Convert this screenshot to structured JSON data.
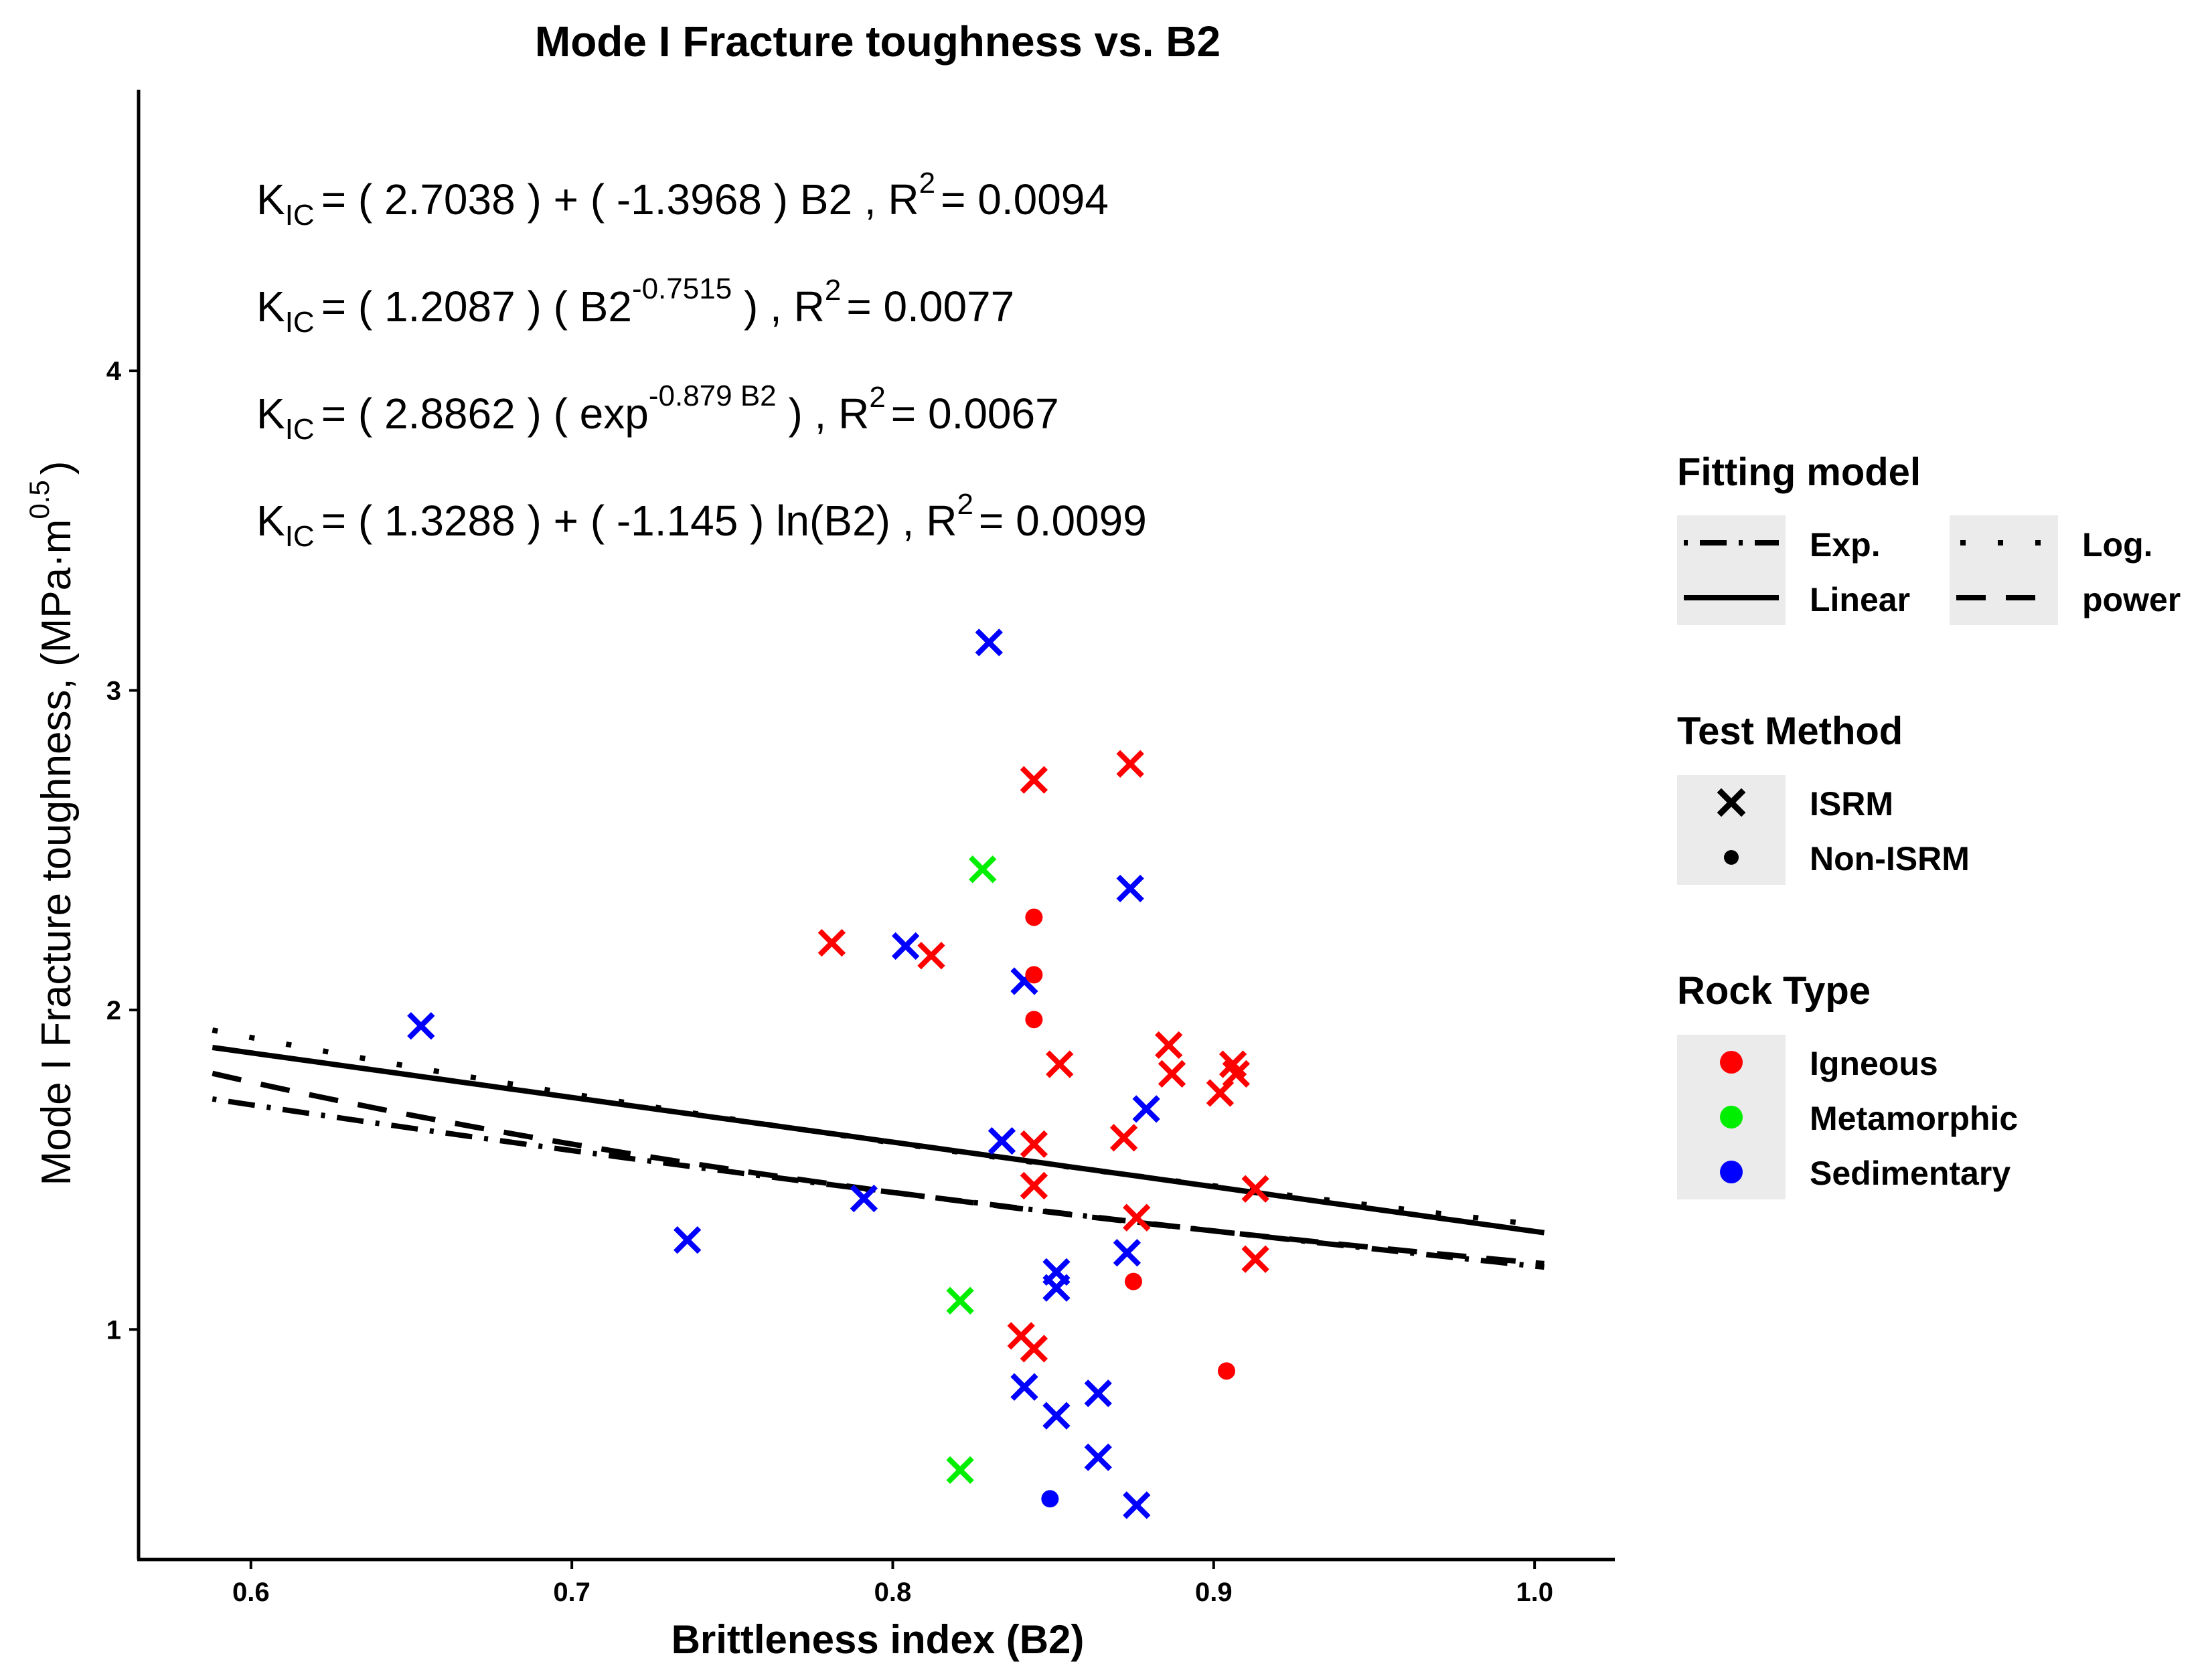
{
  "chart_data": {
    "type": "scatter",
    "title": "Mode I Fracture toughness vs. B2",
    "xlabel": "Brittleness index (B2)",
    "ylabel": "Mode I Fracture toughness, (MPa·m",
    "ylabel_sup": "0.5",
    "ylabel_close": ")",
    "xlim": [
      0.565,
      1.025
    ],
    "ylim": [
      0.28,
      4.88
    ],
    "xticks": [
      "0.6",
      "0.7",
      "0.8",
      "0.9",
      "1.0"
    ],
    "yticks": [
      "1",
      "2",
      "3",
      "4"
    ],
    "equations": [
      {
        "k": "K",
        "sub": "IC",
        "text": "=  ( 2.7038 ) + ( -1.3968 ) B2 ,  R",
        "r2sup": "2",
        "r2": "= 0.0094"
      },
      {
        "k": "K",
        "sub": "IC",
        "pre": "=  ( 1.2087 ) ( B2",
        "sup": "-0.7515",
        "post": " ) ,  R",
        "r2sup": "2",
        "r2": "= 0.0077"
      },
      {
        "k": "K",
        "sub": "IC",
        "pre": "=  ( 2.8862 ) ( exp",
        "sup": "-0.879 B2",
        "post": " ) ,  R",
        "r2sup": "2",
        "r2": "= 0.0067"
      },
      {
        "k": "K",
        "sub": "IC",
        "text": "=  ( 1.3288 ) + ( -1.145 ) ln(B2) ,  R",
        "r2sup": "2",
        "r2": "= 0.0099"
      }
    ],
    "models": {
      "x_range": [
        0.588,
        1.003
      ],
      "linear": {
        "a": 2.7038,
        "b": -1.3968
      },
      "power": {
        "a": 1.2087,
        "b": -0.7515
      },
      "exp": {
        "a": 2.8862,
        "b": -0.879
      },
      "log": {
        "a": 1.3288,
        "b": -1.145
      }
    },
    "points": [
      {
        "x": 0.653,
        "y": 1.95,
        "method": "ISRM",
        "rock": "Sedimentary"
      },
      {
        "x": 0.736,
        "y": 1.28,
        "method": "ISRM",
        "rock": "Sedimentary"
      },
      {
        "x": 0.781,
        "y": 2.21,
        "method": "ISRM",
        "rock": "Igneous"
      },
      {
        "x": 0.791,
        "y": 1.41,
        "method": "ISRM",
        "rock": "Sedimentary"
      },
      {
        "x": 0.804,
        "y": 2.2,
        "method": "ISRM",
        "rock": "Sedimentary"
      },
      {
        "x": 0.812,
        "y": 2.17,
        "method": "ISRM",
        "rock": "Igneous"
      },
      {
        "x": 0.821,
        "y": 1.09,
        "method": "ISRM",
        "rock": "Metamorphic"
      },
      {
        "x": 0.821,
        "y": 0.56,
        "method": "ISRM",
        "rock": "Metamorphic"
      },
      {
        "x": 0.828,
        "y": 2.44,
        "method": "ISRM",
        "rock": "Metamorphic"
      },
      {
        "x": 0.83,
        "y": 3.15,
        "method": "ISRM",
        "rock": "Sedimentary"
      },
      {
        "x": 0.834,
        "y": 1.59,
        "method": "ISRM",
        "rock": "Sedimentary"
      },
      {
        "x": 0.84,
        "y": 0.98,
        "method": "ISRM",
        "rock": "Igneous"
      },
      {
        "x": 0.841,
        "y": 2.09,
        "method": "ISRM",
        "rock": "Sedimentary"
      },
      {
        "x": 0.841,
        "y": 0.82,
        "method": "ISRM",
        "rock": "Sedimentary"
      },
      {
        "x": 0.844,
        "y": 2.72,
        "method": "ISRM",
        "rock": "Igneous"
      },
      {
        "x": 0.844,
        "y": 1.58,
        "method": "ISRM",
        "rock": "Igneous"
      },
      {
        "x": 0.844,
        "y": 1.45,
        "method": "ISRM",
        "rock": "Igneous"
      },
      {
        "x": 0.844,
        "y": 0.94,
        "method": "ISRM",
        "rock": "Igneous"
      },
      {
        "x": 0.844,
        "y": 2.29,
        "method": "Non-ISRM",
        "rock": "Igneous"
      },
      {
        "x": 0.844,
        "y": 2.11,
        "method": "Non-ISRM",
        "rock": "Igneous"
      },
      {
        "x": 0.844,
        "y": 1.97,
        "method": "Non-ISRM",
        "rock": "Igneous"
      },
      {
        "x": 0.849,
        "y": 0.47,
        "method": "Non-ISRM",
        "rock": "Sedimentary"
      },
      {
        "x": 0.851,
        "y": 1.18,
        "method": "ISRM",
        "rock": "Sedimentary"
      },
      {
        "x": 0.851,
        "y": 1.13,
        "method": "ISRM",
        "rock": "Sedimentary"
      },
      {
        "x": 0.851,
        "y": 0.73,
        "method": "ISRM",
        "rock": "Sedimentary"
      },
      {
        "x": 0.852,
        "y": 1.83,
        "method": "ISRM",
        "rock": "Igneous"
      },
      {
        "x": 0.864,
        "y": 0.8,
        "method": "ISRM",
        "rock": "Sedimentary"
      },
      {
        "x": 0.864,
        "y": 0.6,
        "method": "ISRM",
        "rock": "Sedimentary"
      },
      {
        "x": 0.872,
        "y": 1.6,
        "method": "ISRM",
        "rock": "Igneous"
      },
      {
        "x": 0.873,
        "y": 1.24,
        "method": "ISRM",
        "rock": "Sedimentary"
      },
      {
        "x": 0.874,
        "y": 2.77,
        "method": "ISRM",
        "rock": "Igneous"
      },
      {
        "x": 0.874,
        "y": 2.38,
        "method": "ISRM",
        "rock": "Sedimentary"
      },
      {
        "x": 0.875,
        "y": 1.15,
        "method": "Non-ISRM",
        "rock": "Igneous"
      },
      {
        "x": 0.876,
        "y": 1.35,
        "method": "ISRM",
        "rock": "Igneous"
      },
      {
        "x": 0.876,
        "y": 0.45,
        "method": "ISRM",
        "rock": "Sedimentary"
      },
      {
        "x": 0.879,
        "y": 1.69,
        "method": "ISRM",
        "rock": "Sedimentary"
      },
      {
        "x": 0.886,
        "y": 1.89,
        "method": "ISRM",
        "rock": "Igneous"
      },
      {
        "x": 0.887,
        "y": 1.8,
        "method": "ISRM",
        "rock": "Igneous"
      },
      {
        "x": 0.902,
        "y": 1.74,
        "method": "ISRM",
        "rock": "Igneous"
      },
      {
        "x": 0.904,
        "y": 0.87,
        "method": "Non-ISRM",
        "rock": "Igneous"
      },
      {
        "x": 0.906,
        "y": 1.83,
        "method": "ISRM",
        "rock": "Igneous"
      },
      {
        "x": 0.907,
        "y": 1.8,
        "method": "ISRM",
        "rock": "Igneous"
      },
      {
        "x": 0.913,
        "y": 1.44,
        "method": "ISRM",
        "rock": "Igneous"
      },
      {
        "x": 0.913,
        "y": 1.22,
        "method": "ISRM",
        "rock": "Igneous"
      }
    ]
  },
  "legend": {
    "fitting": {
      "title": "Fitting model",
      "items": [
        {
          "label": "Exp.",
          "model": "exp"
        },
        {
          "label": "Log.",
          "model": "log"
        },
        {
          "label": "Linear",
          "model": "linear"
        },
        {
          "label": "power",
          "model": "power"
        }
      ]
    },
    "method": {
      "title": "Test Method",
      "items": [
        {
          "label": "ISRM",
          "shape": "cross"
        },
        {
          "label": "Non-ISRM",
          "shape": "dot"
        }
      ]
    },
    "rock": {
      "title": "Rock Type",
      "items": [
        {
          "label": "Igneous",
          "color": "#ff0000"
        },
        {
          "label": "Metamorphic",
          "color": "#00ee00"
        },
        {
          "label": "Sedimentary",
          "color": "#0000ff"
        }
      ]
    }
  },
  "colors": {
    "Igneous": "#ff0000",
    "Metamorphic": "#00ee00",
    "Sedimentary": "#0000ff",
    "line": "#000000",
    "legend_key_bg": "#ebebeb"
  }
}
